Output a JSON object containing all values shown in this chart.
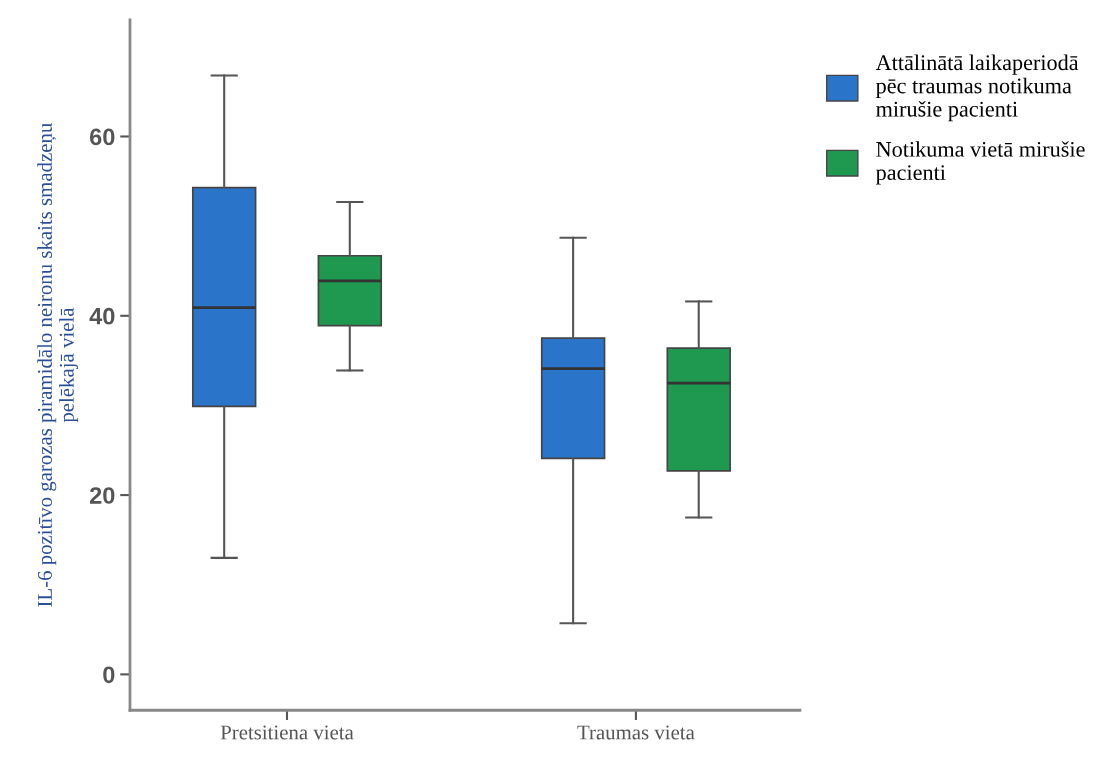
{
  "chart_data": {
    "type": "box",
    "ylabel": "IL-6 pozitīvo garozas piramidālo neironu skaits smadzeņu\npelēkajā vielā",
    "categories": [
      "Pretsitiena vieta",
      "Traumas vieta"
    ],
    "series": [
      {
        "name": "Attālinātā laikaperiodā\npēc traumas notikuma\nmirušie pacienti",
        "color": "#2a74c9",
        "boxes": [
          {
            "low": 13,
            "q1": 29.9,
            "median": 40.9,
            "q3": 54.3,
            "high": 66.8
          },
          {
            "low": 5.7,
            "q1": 24.1,
            "median": 34.1,
            "q3": 37.5,
            "high": 48.7
          }
        ]
      },
      {
        "name": "Notikuma vietā mirušie\npacienti",
        "color": "#1f9850",
        "boxes": [
          {
            "low": 33.9,
            "q1": 38.9,
            "median": 43.9,
            "q3": 46.7,
            "high": 52.7
          },
          {
            "low": 17.5,
            "q1": 22.7,
            "median": 32.5,
            "q3": 36.4,
            "high": 41.6
          }
        ]
      }
    ],
    "ylim": [
      -4,
      73
    ],
    "yticks": [
      0,
      20,
      40,
      60
    ],
    "grid": false,
    "legend": "top right"
  }
}
